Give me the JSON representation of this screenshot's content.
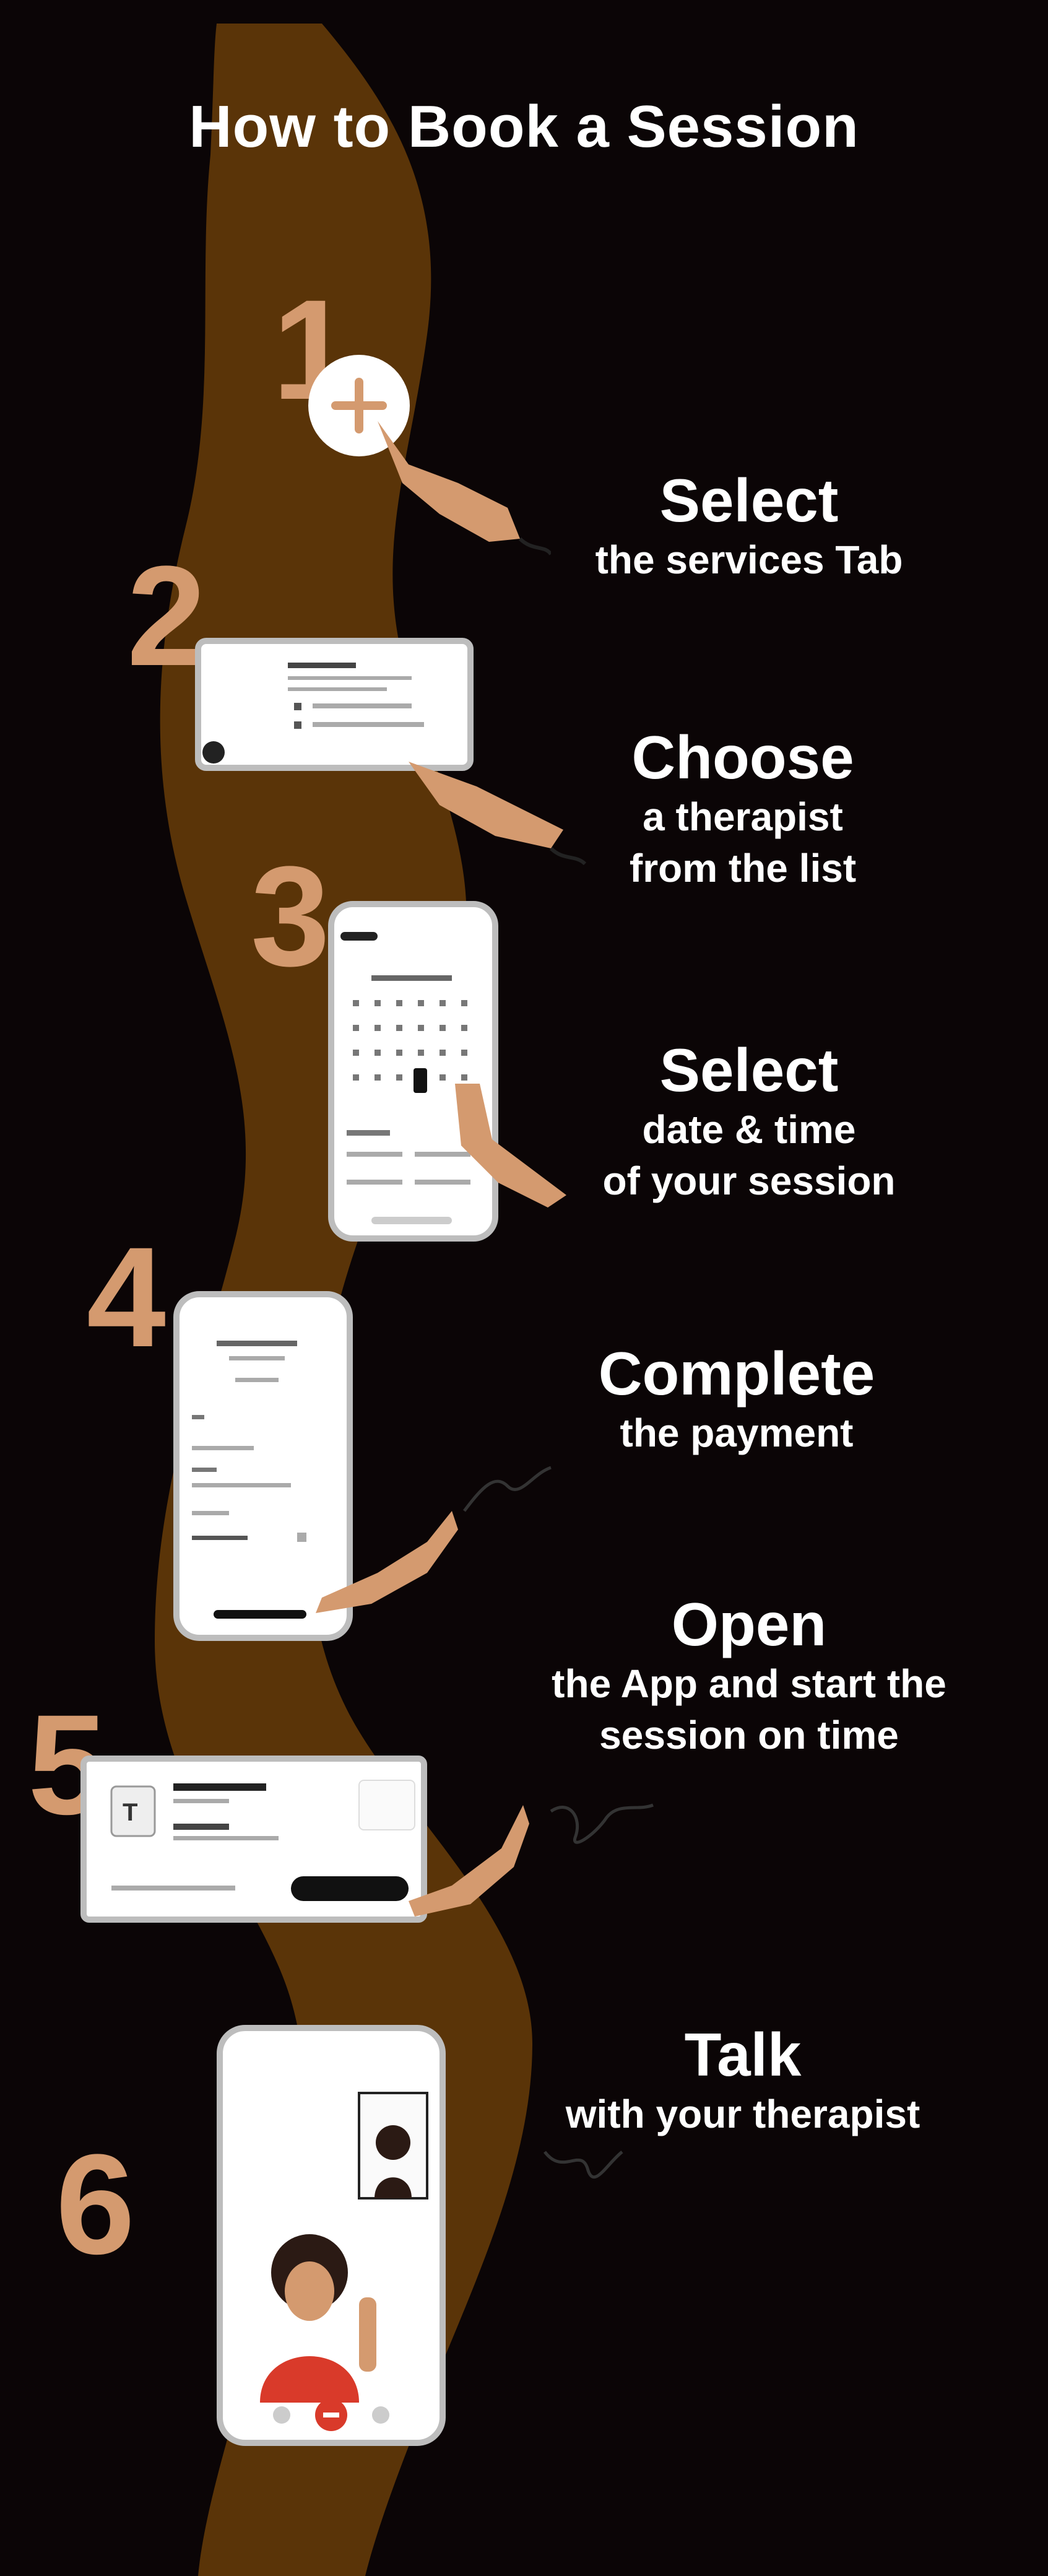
{
  "title": "How to Book a Session",
  "colors": {
    "background": "#0b0506",
    "path": "#5a3408",
    "numbers": "#d49a6f",
    "text": "#ffffff",
    "skin": "#d49a6f",
    "hair": "#2b1a14",
    "shirt": "#d93a2a"
  },
  "steps": [
    {
      "number": "1",
      "heading": "Select",
      "lines": [
        "the services Tab"
      ],
      "icon": "plus-circle-icon"
    },
    {
      "number": "2",
      "heading": "Choose",
      "lines": [
        "a therapist",
        "from the list"
      ],
      "icon": "therapist-list-card"
    },
    {
      "number": "3",
      "heading": "Select",
      "lines": [
        "date & time",
        "of your session"
      ],
      "icon": "calendar-phone"
    },
    {
      "number": "4",
      "heading": "Complete",
      "lines": [
        "the payment"
      ],
      "icon": "payment-phone"
    },
    {
      "number": "5",
      "heading": "Open",
      "lines": [
        "the App and start the",
        "session on time"
      ],
      "icon": "session-card"
    },
    {
      "number": "6",
      "heading": "Talk",
      "lines": [
        "with your therapist"
      ],
      "icon": "video-call-phone"
    }
  ]
}
